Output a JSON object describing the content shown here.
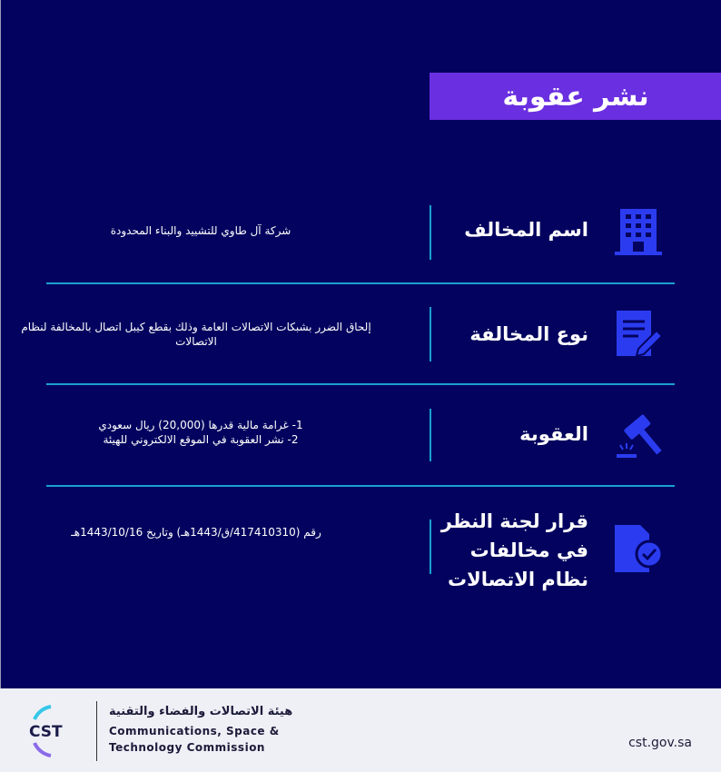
{
  "title": "نشر عقوبة",
  "rows": [
    {
      "label": "اسم المخالف",
      "value": "شركة آل طاوي للتشييد والبناء المحدودة",
      "icon": "building-icon"
    },
    {
      "label": "نوع المخالفة",
      "value": "إلحاق الضرر بشبكات الاتصالات العامة وذلك بقطع كيبل اتصال بالمخالفة لنظام الاتصالات",
      "icon": "document-pen-icon"
    },
    {
      "label": "العقوبة",
      "value_lines": [
        "1- غرامة مالية قدرها (20,000) ريال سعودي",
        "2- نشر العقوبة في الموقع الالكتروني للهيئة"
      ],
      "icon": "gavel-icon"
    },
    {
      "label_lines": [
        "قرار لجنة النظر",
        "في مخالفات",
        "نظام الاتصالات"
      ],
      "value": "رقم (417410310/ق/1443هـ) وتاريخ 1443/10/16هـ",
      "icon": "document-badge-check-icon"
    }
  ],
  "footer": {
    "logo_text": "CST",
    "org_ar": "هيئة الاتصالات والفضاء والتقنية",
    "org_en_1": "Communications, Space &",
    "org_en_2": "Technology Commission",
    "website": "cst.gov.sa"
  },
  "colors": {
    "background": "#03035f",
    "title_bar": "#6a2fe0",
    "divider": "#1a9fd0",
    "icon": "#2b3cf0",
    "footer": "#eff0f6"
  }
}
